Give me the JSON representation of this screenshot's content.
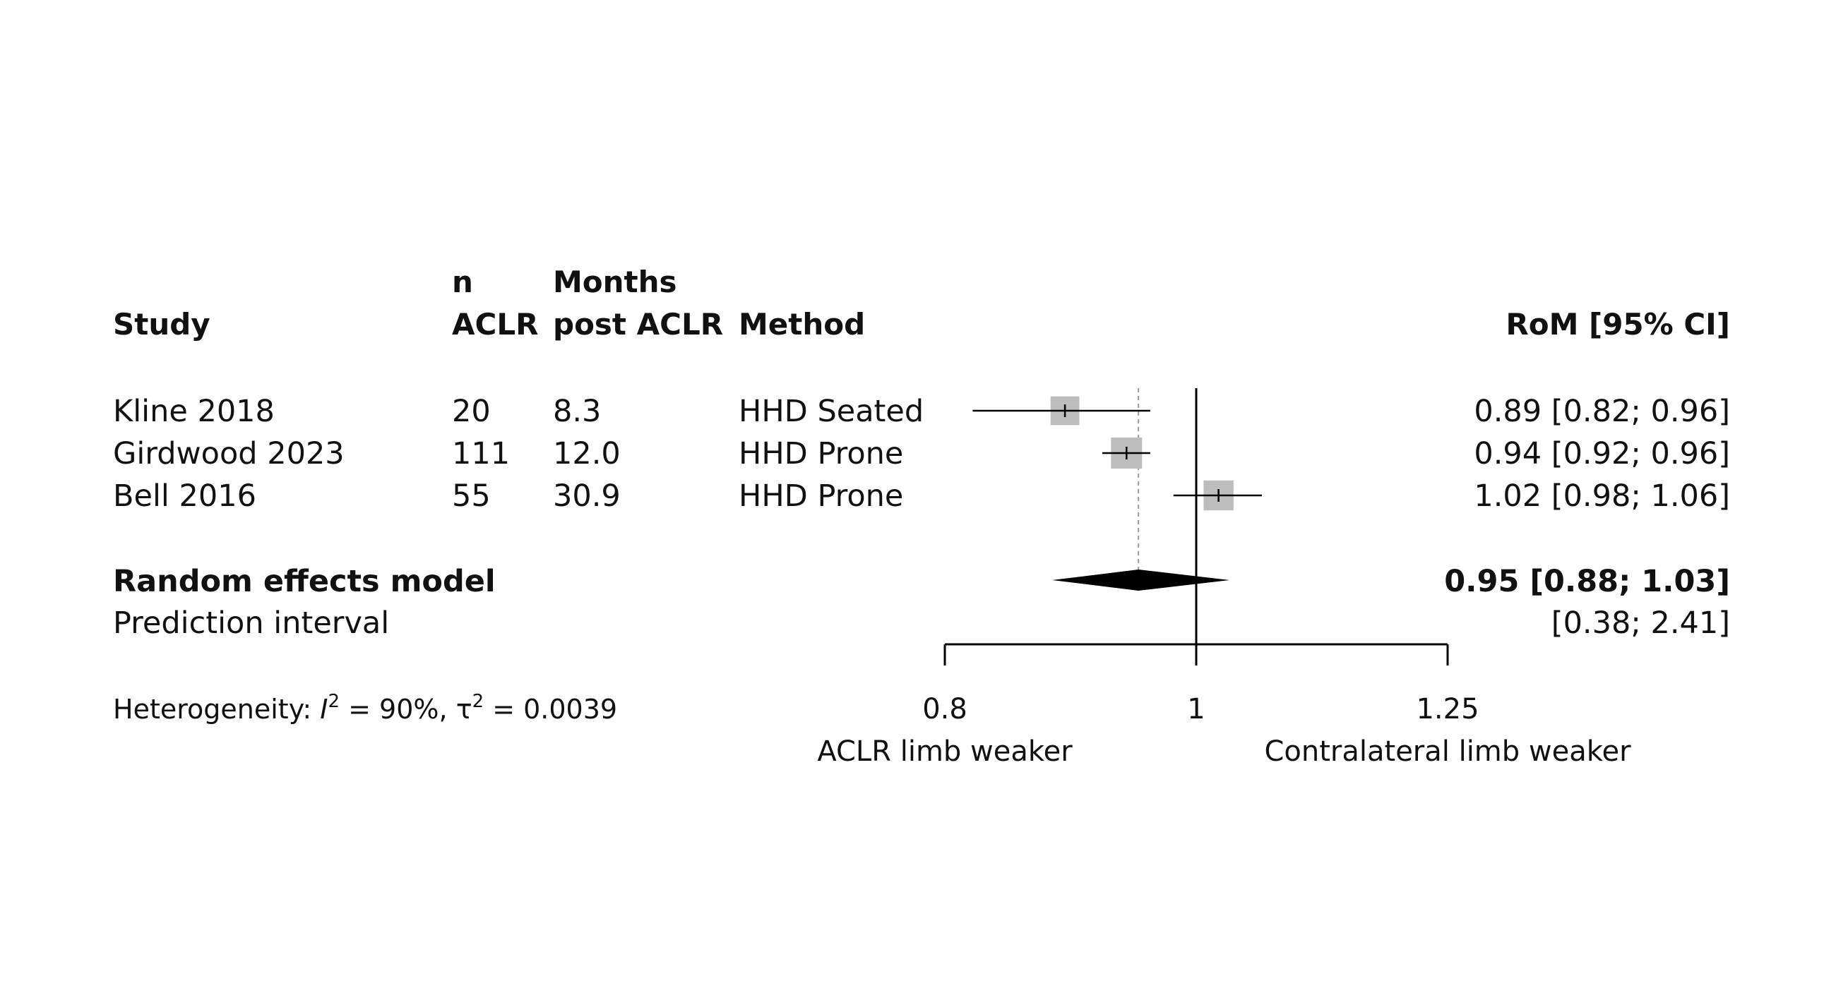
{
  "chart_data": {
    "type": "forest",
    "headers": {
      "study": "Study",
      "n_line1": "n",
      "n_line2": "ACLR",
      "months_line1": "Months",
      "months_line2": "post ACLR",
      "method": "Method",
      "effect": "RoM [95% CI]"
    },
    "studies": [
      {
        "study": "Kline 2018",
        "n": "20",
        "months": "8.3",
        "method": "HHD Seated",
        "rom": 0.89,
        "lower": 0.82,
        "upper": 0.96,
        "weight": 0.36,
        "ci_text": "0.89 [0.82; 0.96]"
      },
      {
        "study": "Girdwood 2023",
        "n": "111",
        "months": "12.0",
        "method": "HHD Prone",
        "rom": 0.94,
        "lower": 0.92,
        "upper": 0.96,
        "weight": 0.42,
        "ci_text": "0.94 [0.92; 0.96]"
      },
      {
        "study": "Bell 2016",
        "n": "55",
        "months": "30.9",
        "method": "HHD Prone",
        "rom": 1.02,
        "lower": 0.98,
        "upper": 1.06,
        "weight": 0.39,
        "ci_text": "1.02 [0.98; 1.06]"
      }
    ],
    "pooled": {
      "label": "Random effects model",
      "rom": 0.95,
      "lower": 0.88,
      "upper": 1.03,
      "ci_text": "0.95 [0.88; 1.03]"
    },
    "prediction": {
      "label": "Prediction interval",
      "lower": 0.38,
      "upper": 2.41,
      "ci_text": "[0.38; 2.41]"
    },
    "heterogeneity": {
      "prefix": "Heterogeneity: ",
      "i2_symbol": "I",
      "i2_value": " = 90%, ",
      "tau2_symbol": "τ",
      "tau2_value": " = 0.0039",
      "superscript": "2"
    },
    "axis": {
      "scale": "log",
      "xlim": [
        0.8,
        1.25
      ],
      "ticks": [
        0.8,
        1,
        1.25
      ],
      "tick_labels": [
        "0.8",
        "1",
        "1.25"
      ],
      "null_value": 1
    },
    "direction_labels": {
      "left": "ACLR limb weaker",
      "right": "Contralateral limb weaker"
    },
    "colors": {
      "box": "#bdbdbd",
      "line": "#000000",
      "ref_line": "#999999",
      "diamond": "#000000"
    }
  }
}
